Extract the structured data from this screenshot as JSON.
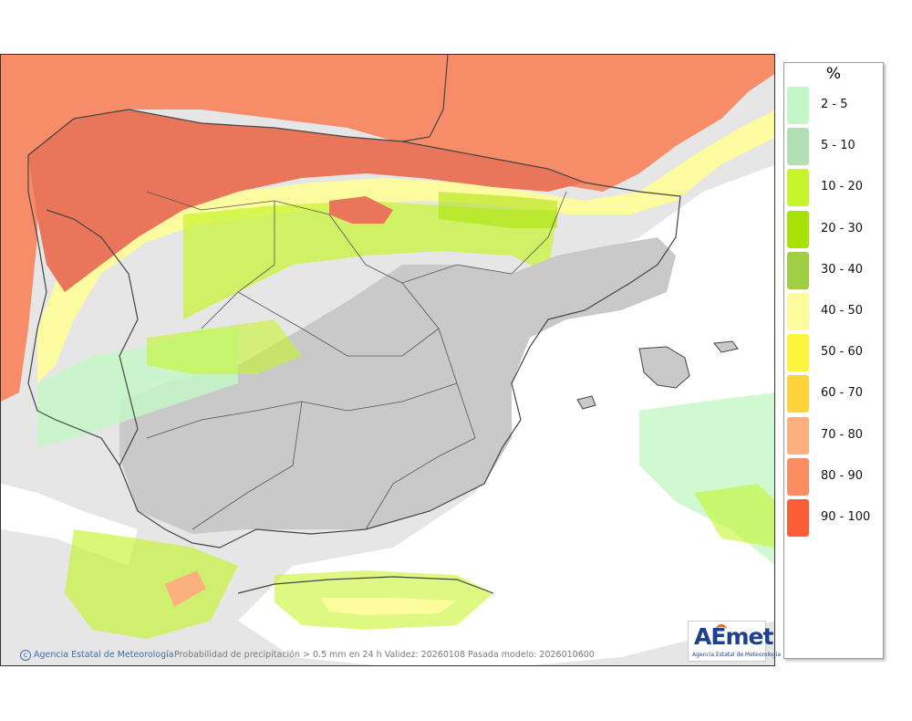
{
  "legend": {
    "unit": "%",
    "items": [
      {
        "label": "2 - 5",
        "color": "#c4f7c7"
      },
      {
        "label": "5 - 10",
        "color": "#b2dfb3"
      },
      {
        "label": "10 - 20",
        "color": "#c6f52e"
      },
      {
        "label": "20 - 30",
        "color": "#a8e206"
      },
      {
        "label": "30 - 40",
        "color": "#9fce45"
      },
      {
        "label": "40 - 50",
        "color": "#fdfc9c"
      },
      {
        "label": "50 - 60",
        "color": "#fcf53b"
      },
      {
        "label": "60 - 70",
        "color": "#fcd43a"
      },
      {
        "label": "70 - 80",
        "color": "#fcb07d"
      },
      {
        "label": "80 - 90",
        "color": "#fb8d62"
      },
      {
        "label": "90 - 100",
        "color": "#fb5e36"
      }
    ]
  },
  "footer": {
    "credit": "Agencia Estatal de Meteorología",
    "caption": "Probabilidad de precipitación > 0.5 mm en 24 h Validez: 20260108 Pasada modelo: 2026010600"
  },
  "logo": {
    "word_ae": "AE",
    "word_met": "met",
    "subtitle": "Agencia Estatal de Meteorología"
  },
  "map": {
    "colors": {
      "sea_high": "#f78c68",
      "land_high": "#e9765a",
      "land_none": "#c9c9c9",
      "sea_none": "#ffffff",
      "outside": "#e4e4e4",
      "border": "#444444"
    }
  }
}
